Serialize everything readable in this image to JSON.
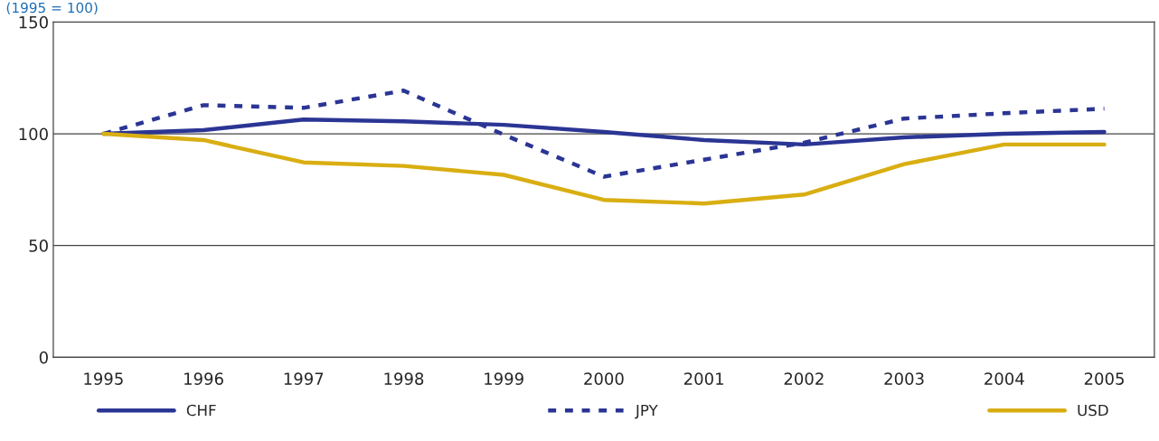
{
  "chart_data": {
    "type": "line",
    "ylabel": "(1995 = 100)",
    "categories": [
      "1995",
      "1996",
      "1997",
      "1998",
      "1999",
      "2000",
      "2001",
      "2002",
      "2003",
      "2004",
      "2005"
    ],
    "series": [
      {
        "name": "CHF",
        "color": "#2b3594",
        "line_style": "solid",
        "values": [
          100,
          101.6,
          106.4,
          105.6,
          104,
          100.8,
          97.2,
          95.2,
          98.4,
          100,
          100.8
        ]
      },
      {
        "name": "JPY",
        "color": "#2b3594",
        "line_style": "dashed",
        "values": [
          100,
          112.8,
          111.6,
          119.3,
          99.6,
          80.8,
          88.4,
          96,
          106.8,
          109.2,
          111.2
        ]
      },
      {
        "name": "USD",
        "color": "#d9ae12",
        "line_style": "solid",
        "values": [
          100,
          97.2,
          87.2,
          85.6,
          81.6,
          70.4,
          68.8,
          72.8,
          86.4,
          95.2,
          95.2
        ]
      }
    ],
    "ylim": [
      0,
      150
    ],
    "yticks": [
      0,
      50,
      100,
      150
    ],
    "grid": "y",
    "legend": "bottom",
    "marker": "none"
  }
}
